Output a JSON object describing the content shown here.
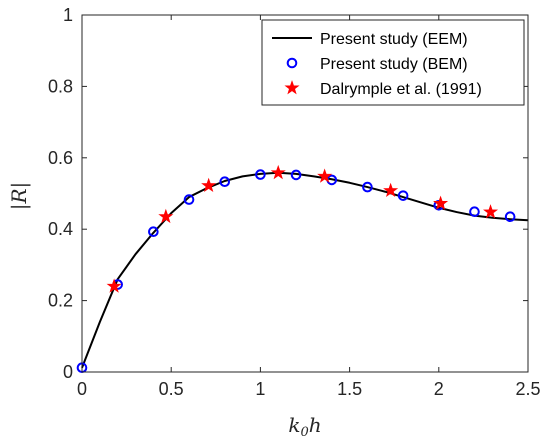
{
  "chart_data": {
    "type": "line",
    "xlabel": "k0h",
    "ylabel": "|R|",
    "xlim": [
      0,
      2.5
    ],
    "ylim": [
      0,
      1
    ],
    "xticks": [
      "0",
      "0.5",
      "1",
      "1.5",
      "2",
      "2.5"
    ],
    "yticks": [
      "0",
      "0.2",
      "0.4",
      "0.6",
      "0.8",
      "1"
    ],
    "grid": false,
    "legend_position": "top-right",
    "series": [
      {
        "name": "Present study (EEM)",
        "marker": "line",
        "color": "#000000",
        "x": [
          0.0,
          0.1,
          0.2,
          0.3,
          0.4,
          0.5,
          0.6,
          0.7,
          0.8,
          0.9,
          1.0,
          1.1,
          1.2,
          1.3,
          1.4,
          1.5,
          1.6,
          1.7,
          1.8,
          1.9,
          2.0,
          2.1,
          2.2,
          2.3,
          2.4,
          2.5
        ],
        "y": [
          0.012,
          0.14,
          0.26,
          0.33,
          0.39,
          0.445,
          0.49,
          0.515,
          0.535,
          0.548,
          0.555,
          0.558,
          0.555,
          0.548,
          0.54,
          0.53,
          0.518,
          0.505,
          0.49,
          0.475,
          0.46,
          0.448,
          0.438,
          0.432,
          0.428,
          0.425
        ]
      },
      {
        "name": "Present study (BEM)",
        "marker": "circle",
        "color": "#0000ff",
        "x": [
          0.0,
          0.2,
          0.4,
          0.6,
          0.8,
          1.0,
          1.2,
          1.4,
          1.6,
          1.8,
          2.0,
          2.2,
          2.4
        ],
        "y": [
          0.012,
          0.245,
          0.393,
          0.483,
          0.533,
          0.553,
          0.552,
          0.538,
          0.518,
          0.494,
          0.467,
          0.449,
          0.435
        ]
      },
      {
        "name": "Dalrymple et al. (1991)",
        "marker": "star",
        "color": "#ff0000",
        "x": [
          0.18,
          0.47,
          0.71,
          1.1,
          1.36,
          1.73,
          2.01,
          2.29
        ],
        "y": [
          0.24,
          0.435,
          0.522,
          0.558,
          0.548,
          0.508,
          0.472,
          0.448
        ]
      }
    ]
  }
}
